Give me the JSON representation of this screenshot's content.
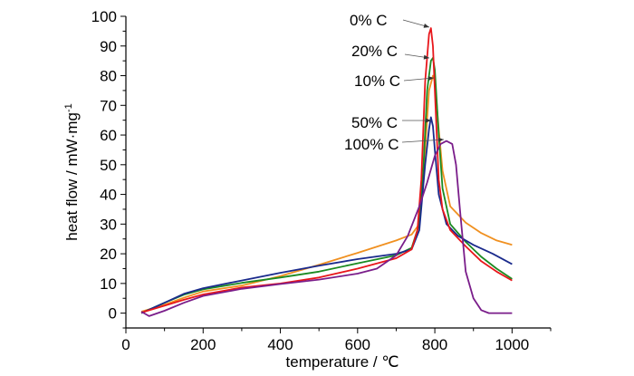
{
  "chart_data": {
    "type": "line",
    "title": "",
    "xlabel": "temperature / ℃",
    "ylabel_main": "heat flow / mW·mg",
    "ylabel_sup": "-1",
    "xlim": [
      0,
      1100
    ],
    "ylim": [
      -5,
      100
    ],
    "x_ticks": [
      0,
      200,
      400,
      600,
      800,
      1000
    ],
    "y_ticks": [
      0,
      10,
      20,
      30,
      40,
      50,
      60,
      70,
      80,
      90,
      100
    ],
    "grid": false,
    "legend": "none",
    "series": [
      {
        "name": "0% C",
        "color": "#e8161b",
        "x": [
          40,
          100,
          150,
          200,
          300,
          400,
          500,
          600,
          700,
          740,
          755,
          765,
          775,
          785,
          790,
          795,
          800,
          810,
          820,
          840,
          880,
          920,
          960,
          1000
        ],
        "y": [
          0.2,
          2.5,
          4.5,
          6.3,
          8.6,
          10.0,
          12.0,
          15.0,
          18.5,
          21.5,
          28,
          45,
          78,
          94,
          96,
          90,
          75,
          45,
          35,
          28,
          22.5,
          17.5,
          14,
          11
        ]
      },
      {
        "name": "20% C",
        "color": "#1b8a22",
        "x": [
          40,
          100,
          150,
          200,
          300,
          400,
          500,
          600,
          700,
          740,
          760,
          770,
          780,
          790,
          795,
          800,
          810,
          820,
          840,
          880,
          920,
          960,
          1000
        ],
        "y": [
          0,
          3.5,
          6.2,
          8.0,
          10.2,
          12.0,
          14.0,
          16.8,
          19.5,
          22,
          30,
          48,
          75,
          85,
          86,
          82,
          60,
          42,
          30,
          24,
          19,
          15,
          11.5
        ]
      },
      {
        "name": "10% C",
        "color": "#f09020",
        "x": [
          40,
          100,
          150,
          200,
          300,
          400,
          500,
          600,
          700,
          740,
          760,
          775,
          785,
          795,
          800,
          810,
          820,
          840,
          880,
          920,
          960,
          1000
        ],
        "y": [
          0.5,
          2.8,
          5.2,
          7.3,
          9.3,
          12.5,
          16.3,
          20.3,
          24.5,
          26.5,
          30,
          55,
          75,
          80,
          78,
          62,
          48,
          36,
          30.5,
          27,
          24.5,
          23
        ]
      },
      {
        "name": "50% C",
        "color": "#1a2a8c",
        "x": [
          40,
          100,
          150,
          200,
          300,
          400,
          500,
          600,
          700,
          740,
          760,
          775,
          785,
          790,
          795,
          800,
          810,
          830,
          860,
          900,
          950,
          1000
        ],
        "y": [
          0,
          3.5,
          6.5,
          8.4,
          11.0,
          13.6,
          16.0,
          18.2,
          20.0,
          21.5,
          28,
          50,
          62,
          66,
          63,
          55,
          40,
          30,
          26,
          23,
          20,
          16.5
        ]
      },
      {
        "name": "100% C",
        "color": "#7a1d8a",
        "x": [
          40,
          60,
          100,
          150,
          200,
          300,
          400,
          500,
          600,
          650,
          700,
          730,
          760,
          780,
          800,
          815,
          830,
          845,
          855,
          865,
          880,
          900,
          920,
          940,
          960,
          1000
        ],
        "y": [
          0.5,
          -1,
          0.8,
          3.5,
          5.8,
          8.2,
          9.8,
          11.3,
          13.3,
          15.0,
          19.5,
          26,
          36,
          44,
          53,
          57,
          58,
          57,
          50,
          35,
          14,
          5,
          1,
          0,
          0,
          0
        ]
      }
    ],
    "annotations": [
      {
        "text": "0% C",
        "series": "0% C"
      },
      {
        "text": "20% C",
        "series": "20% C"
      },
      {
        "text": "10% C",
        "series": "10% C"
      },
      {
        "text": "50% C",
        "series": "50% C"
      },
      {
        "text": "100% C",
        "series": "100% C"
      }
    ]
  }
}
